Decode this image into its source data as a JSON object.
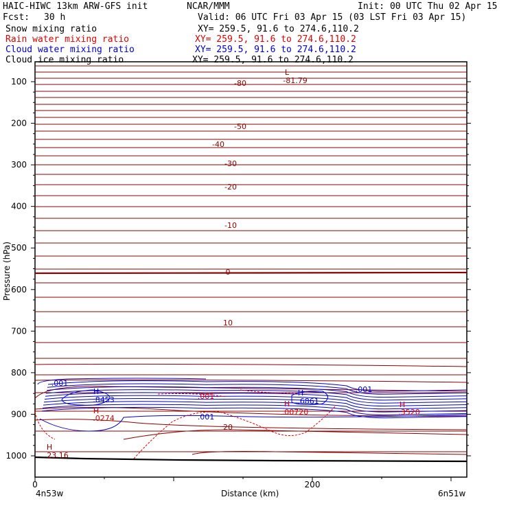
{
  "header": {
    "model": "HAIC-HIWC 13km ARW-GFS init",
    "org": "NCAR/MMM",
    "init": "Init: 00 UTC Thu 02 Apr 15",
    "fcst_label": "Fcst:",
    "fcst_value": "30 h",
    "valid": "Valid: 06 UTC Fri 03 Apr 15 (03 LST Fri 03 Apr 15)",
    "fields": [
      {
        "name": "Snow mixing ratio",
        "xy": "XY= 259.5, 91.6 to 274.6,110.2",
        "color": "#000000"
      },
      {
        "name": "Rain water mixing ratio",
        "xy": "XY= 259.5, 91.6 to 274.6,110.2",
        "color": "#e00000"
      },
      {
        "name": "Cloud water mixing ratio",
        "xy": "XY= 259.5, 91.6 to 274.6,110.2",
        "color": "#0000cc"
      },
      {
        "name": "Cloud ice mixing ratio",
        "xy": "XY= 259.5, 91.6 to 274.6,110.2",
        "color": "#000000"
      }
    ]
  },
  "chart_data": {
    "type": "line",
    "title": "",
    "ylabel": "Pressure (hPa)",
    "xlabel": "Distance (km)",
    "y_ticks": [
      "100",
      "200",
      "300",
      "400",
      "500",
      "600",
      "700",
      "800",
      "900",
      "1000"
    ],
    "x_ticks": [
      "0",
      "200"
    ],
    "x_endpoints": {
      "left": "4n53w",
      "right": "6n51w"
    },
    "temperature_contour_labels": [
      "-80",
      "-50",
      "-40",
      "-30",
      "-20",
      "-10",
      "0",
      "10",
      "20"
    ],
    "extrema": [
      {
        "type": "L",
        "value": "-81.79",
        "color": "#8b0000"
      },
      {
        "type": "H",
        "value": ".8453",
        "color": "#0000cc"
      },
      {
        "type": "H",
        "value": ".0274",
        "color": "#e00000"
      },
      {
        "type": "H",
        "value": ".6861",
        "color": "#0000cc"
      },
      {
        "type": "H",
        "value": ".00720",
        "color": "#e00000"
      },
      {
        "type": "H",
        "value": ".3520",
        "color": "#e00000"
      },
      {
        "type": "H",
        "value": "23.16",
        "color": "#8b0000"
      }
    ],
    "mixing_ratio_labels": [
      ".001",
      ".001",
      ".001",
      ".001"
    ],
    "colors": {
      "temperature": "#8b0000",
      "cloud_water": "#0000cc",
      "rain_water": "#e00000",
      "terrain": "#000000"
    }
  }
}
